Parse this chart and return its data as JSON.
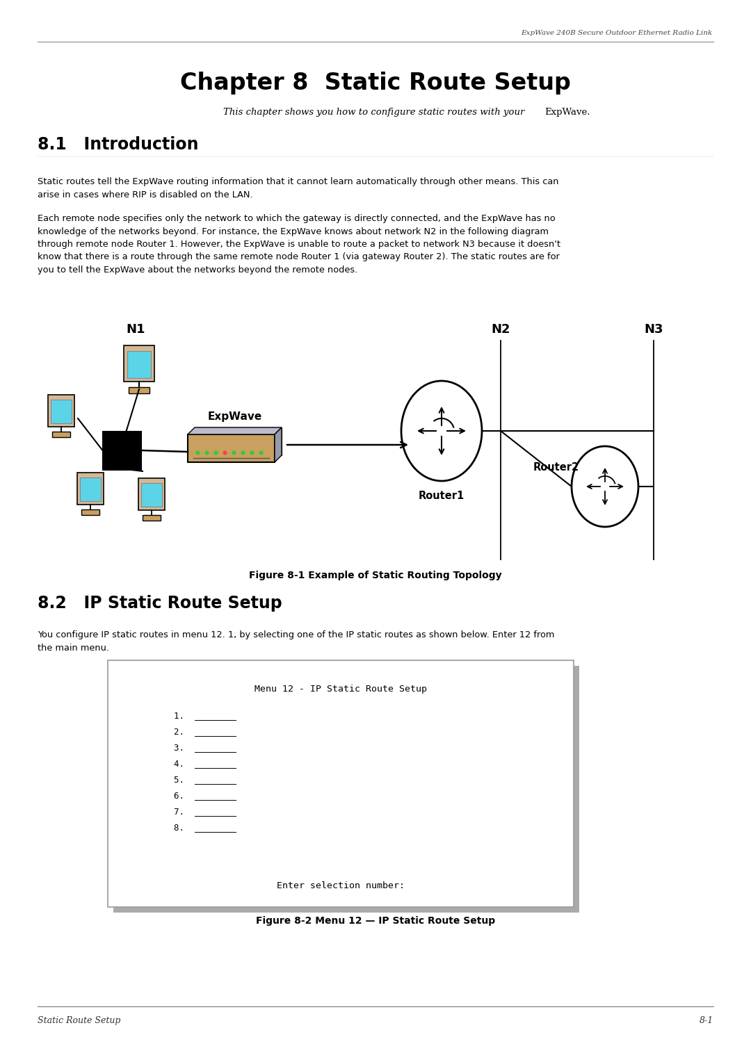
{
  "header_text": "ExpWave 240B Secure Outdoor Ethernet Radio Link",
  "chapter_title": "Chapter 8  Static Route Setup",
  "subtitle_italic": "This chapter shows you how to configure static routes with your ",
  "subtitle_normal": "ExpWave.",
  "section1_title": "8.1   Introduction",
  "para1": "Static routes tell the ExpWave routing information that it cannot learn automatically through other means. This can\narise in cases where RIP is disabled on the LAN.",
  "para2": "Each remote node specifies only the network to which the gateway is directly connected, and the ExpWave has no\nknowledge of the networks beyond. For instance, the ExpWave knows about network N2 in the following diagram\nthrough remote node Router 1. However, the ExpWave is unable to route a packet to network N3 because it doesn't\nknow that there is a route through the same remote node Router 1 (via gateway Router 2). The static routes are for\nyou to tell the ExpWave about the networks beyond the remote nodes.",
  "fig1_caption": "Figure 8-1 Example of Static Routing Topology",
  "section2_title": "8.2   IP Static Route Setup",
  "para3": "You configure IP static routes in menu 12. 1, by selecting one of the IP static routes as shown below. Enter 12 from\nthe main menu.",
  "menu_title": "Menu 12 - IP Static Route Setup",
  "menu_items": [
    "1.  ________",
    "2.  ________",
    "3.  ________",
    "4.  ________",
    "5.  ________",
    "6.  ________",
    "7.  ________",
    "8.  ________"
  ],
  "menu_prompt": "Enter selection number:",
  "fig2_caption": "Figure 8-2 Menu 12 — IP Static Route Setup",
  "footer_left": "Static Route Setup",
  "footer_right": "8-1",
  "bg_color": "#ffffff",
  "text_color": "#000000"
}
